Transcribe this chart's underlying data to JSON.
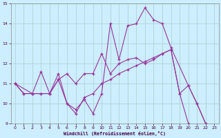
{
  "bg_color": "#cceeff",
  "line_color": "#993399",
  "grid_color": "#aacccc",
  "ylim": [
    9,
    15
  ],
  "xlim": [
    -0.5,
    23.5
  ],
  "yticks": [
    9,
    10,
    11,
    12,
    13,
    14,
    15
  ],
  "xticks": [
    0,
    1,
    2,
    3,
    4,
    5,
    6,
    7,
    8,
    9,
    10,
    11,
    12,
    13,
    14,
    15,
    16,
    17,
    18,
    19,
    20,
    21,
    22,
    23
  ],
  "xlabel": "Windchill (Refroidissement éolien,°C)",
  "line1_x": [
    0,
    1,
    2,
    3,
    4,
    5,
    6,
    7,
    8,
    9,
    10,
    11,
    12,
    13,
    14,
    15,
    16,
    17,
    18,
    20,
    21,
    22,
    23
  ],
  "line1_y": [
    11.0,
    10.5,
    10.5,
    11.6,
    10.5,
    11.5,
    10.0,
    9.7,
    10.2,
    9.5,
    10.5,
    14.0,
    12.2,
    13.9,
    14.0,
    14.8,
    14.2,
    14.0,
    12.8,
    10.9,
    10.0,
    9.0,
    8.9
  ],
  "line2_x": [
    0,
    2,
    3,
    4,
    5,
    6,
    7,
    8,
    9,
    10,
    11,
    12,
    13,
    14,
    15,
    16,
    17,
    18,
    19,
    20,
    21,
    22,
    23
  ],
  "line2_y": [
    11.0,
    10.5,
    10.5,
    10.5,
    11.2,
    11.5,
    11.0,
    11.5,
    11.5,
    12.5,
    11.5,
    12.0,
    12.2,
    12.3,
    12.0,
    12.2,
    12.5,
    12.7,
    10.5,
    10.9,
    10.0,
    9.0,
    8.9
  ],
  "line3_x": [
    0,
    1,
    2,
    3,
    4,
    5,
    6,
    7,
    8,
    9,
    10,
    11,
    12,
    13,
    14,
    15,
    16,
    17,
    18,
    19,
    20,
    21,
    22,
    23
  ],
  "line3_y": [
    11.0,
    10.5,
    10.5,
    10.5,
    10.5,
    11.2,
    10.0,
    9.5,
    10.3,
    10.5,
    11.0,
    11.2,
    11.5,
    11.7,
    11.9,
    12.1,
    12.3,
    12.5,
    12.7,
    10.5,
    9.0,
    8.9,
    8.9,
    8.9
  ]
}
